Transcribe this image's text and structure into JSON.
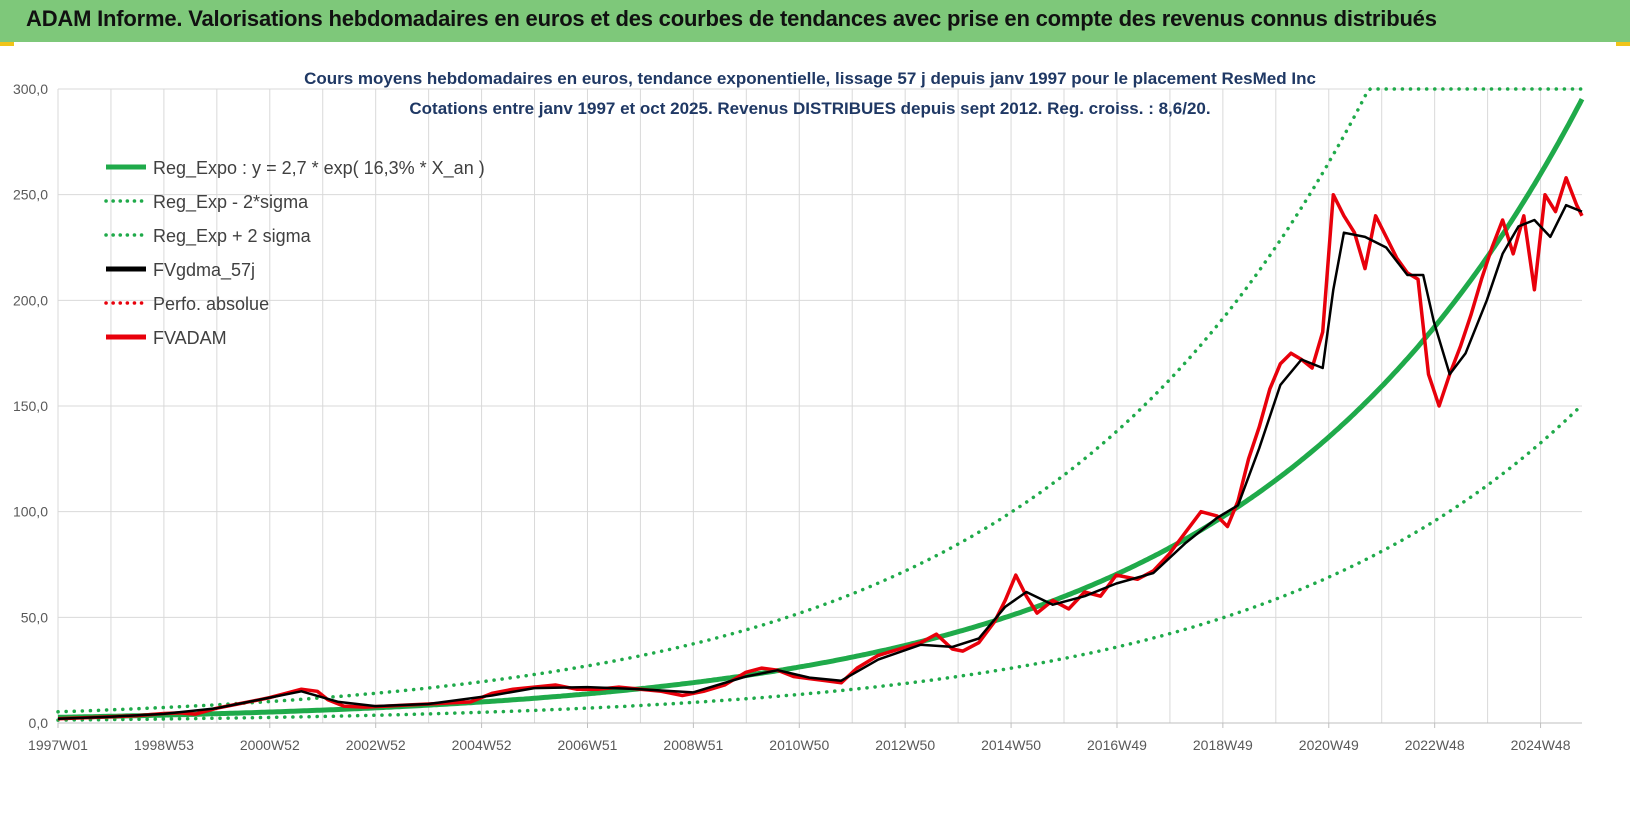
{
  "banner": {
    "title": "ADAM Informe. Valorisations hebdomadaires en euros et des courbes de tendances avec prise en compte des revenus connus distribués"
  },
  "chart_data": {
    "type": "line",
    "title": "Cours moyens hebdomadaires en euros, tendance exponentielle, lissage 57 j depuis janv 1997 pour le placement ResMed Inc",
    "subtitle": "Cotations entre janv 1997 et oct 2025. Revenus DISTRIBUES depuis sept 2012. Reg. croiss. : 8,6/20.",
    "ylim": [
      0,
      300
    ],
    "y_ticks": [
      "0,0",
      "50,0",
      "100,0",
      "150,0",
      "200,0",
      "250,0",
      "300,0"
    ],
    "x_range": [
      1997.0,
      2025.8
    ],
    "x_ticks": [
      "1997W01",
      "1998W53",
      "2000W52",
      "2002W52",
      "2004W52",
      "2006W51",
      "2008W51",
      "2010W50",
      "2012W50",
      "2014W50",
      "2016W49",
      "2018W49",
      "2020W49",
      "2022W48",
      "2024W48"
    ],
    "grid": true,
    "legend_position": "top-left",
    "colors": {
      "green": "#1faa4a",
      "black": "#000000",
      "red": "#e8000b",
      "grid": "#d9d9d9"
    },
    "legend": [
      {
        "label": "Reg_Expo : y = 2,7 * exp( 16,3% *  X_an )",
        "color": "#1faa4a",
        "style": "solid"
      },
      {
        "label": "Reg_Exp - 2*sigma",
        "color": "#1faa4a",
        "style": "dotted"
      },
      {
        "label": "Reg_Exp + 2 sigma",
        "color": "#1faa4a",
        "style": "dotted"
      },
      {
        "label": "FVgdma_57j",
        "color": "#000000",
        "style": "solid"
      },
      {
        "label": "Perfo. absolue",
        "color": "#e8000b",
        "style": "dotted"
      },
      {
        "label": "FVADAM",
        "color": "#e8000b",
        "style": "solid"
      }
    ],
    "regression": {
      "a": 2.7,
      "rate": 0.163,
      "start_year": 1997.0,
      "minus_2sigma_factor": 0.51,
      "plus_2sigma_factor": 1.96,
      "cap": 300
    },
    "series": [
      {
        "name": "FVADAM",
        "x": [
          1997.0,
          1997.5,
          1998.0,
          1998.5,
          1999.0,
          1999.3,
          1999.6,
          2000.0,
          2000.4,
          2000.8,
          2001.0,
          2001.3,
          2001.6,
          2001.9,
          2002.1,
          2002.4,
          2002.8,
          2003.2,
          2003.6,
          2004.0,
          2004.4,
          2004.8,
          2005.2,
          2005.6,
          2006.0,
          2006.4,
          2006.8,
          2007.2,
          2007.6,
          2008.0,
          2008.4,
          2008.8,
          2009.2,
          2009.6,
          2010.0,
          2010.3,
          2010.6,
          2010.9,
          2011.2,
          2011.5,
          2011.8,
          2012.1,
          2012.5,
          2012.9,
          2013.3,
          2013.6,
          2013.9,
          2014.1,
          2014.4,
          2014.7,
          2014.9,
          2015.1,
          2015.3,
          2015.5,
          2015.8,
          2016.1,
          2016.4,
          2016.7,
          2017.0,
          2017.4,
          2017.7,
          2018.0,
          2018.3,
          2018.6,
          2018.9,
          2019.1,
          2019.3,
          2019.5,
          2019.7,
          2019.9,
          2020.1,
          2020.3,
          2020.5,
          2020.7,
          2020.9,
          2021.1,
          2021.3,
          2021.5,
          2021.7,
          2021.9,
          2022.1,
          2022.3,
          2022.5,
          2022.7,
          2022.9,
          2023.1,
          2023.3,
          2023.5,
          2023.7,
          2023.9,
          2024.1,
          2024.3,
          2024.5,
          2024.7,
          2024.9,
          2025.1,
          2025.3,
          2025.5,
          2025.7,
          2025.8
        ],
        "values": [
          2,
          2.5,
          3,
          3.5,
          4.5,
          4.8,
          4.2,
          7,
          9,
          11,
          12,
          14,
          16,
          15,
          11,
          8,
          7.5,
          8,
          8.5,
          9,
          9.5,
          10,
          14,
          16,
          17,
          18,
          16,
          16,
          17,
          16,
          15,
          13,
          15,
          18,
          24,
          26,
          25,
          22,
          21,
          20,
          19,
          26,
          32,
          35,
          38,
          42,
          35,
          34,
          38,
          48,
          58,
          70,
          60,
          52,
          58,
          54,
          62,
          60,
          70,
          68,
          72,
          80,
          90,
          100,
          98,
          93,
          105,
          125,
          140,
          158,
          170,
          175,
          172,
          168,
          185,
          250,
          240,
          232,
          215,
          240,
          230,
          220,
          213,
          210,
          165,
          150,
          165,
          178,
          193,
          210,
          225,
          238,
          222,
          240,
          205,
          250,
          242,
          258,
          245,
          240
        ]
      },
      {
        "name": "FVgdma_57j",
        "x": [
          1997.0,
          1998.0,
          1999.0,
          2000.0,
          2001.0,
          2001.6,
          2002.3,
          2003.0,
          2004.0,
          2005.2,
          2006.0,
          2007.0,
          2008.0,
          2009.0,
          2010.0,
          2010.6,
          2011.2,
          2011.8,
          2012.5,
          2013.3,
          2013.9,
          2014.4,
          2014.9,
          2015.3,
          2015.8,
          2016.4,
          2017.0,
          2017.7,
          2018.3,
          2018.9,
          2019.3,
          2019.7,
          2020.1,
          2020.5,
          2020.9,
          2021.1,
          2021.3,
          2021.7,
          2022.1,
          2022.5,
          2022.8,
          2023.0,
          2023.3,
          2023.6,
          2024.0,
          2024.3,
          2024.6,
          2024.9,
          2025.2,
          2025.5,
          2025.8
        ],
        "values": [
          2,
          3,
          4.3,
          7,
          12,
          15,
          10,
          8,
          9,
          13,
          16.5,
          17,
          16,
          14.5,
          22,
          25,
          21.5,
          20,
          30,
          37,
          36,
          40,
          55,
          62,
          56,
          60,
          66,
          71,
          85,
          97,
          103,
          130,
          160,
          172,
          168,
          205,
          232,
          230,
          225,
          212,
          212,
          190,
          165,
          175,
          200,
          222,
          235,
          238,
          230,
          245,
          242
        ]
      }
    ]
  }
}
